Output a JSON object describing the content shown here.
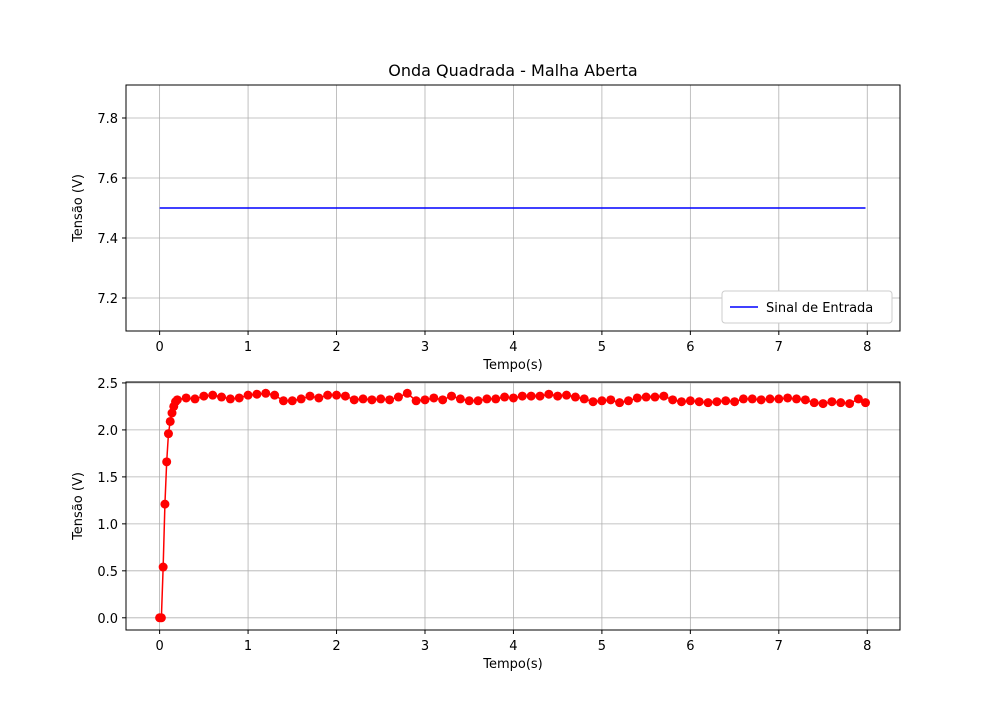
{
  "chart_data": [
    {
      "type": "line",
      "title": "Onda Quadrada - Malha Aberta",
      "xlabel": "Tempo(s)",
      "ylabel": "Tensão (V)",
      "x": [
        0,
        7.98
      ],
      "series": [
        {
          "name": "Sinal de Entrada",
          "color": "#0000ff",
          "values": [
            7.5,
            7.5
          ]
        }
      ],
      "xlim": [
        -0.38,
        8.37
      ],
      "ylim": [
        7.09,
        7.91
      ],
      "xticks": [
        0,
        1,
        2,
        3,
        4,
        5,
        6,
        7,
        8
      ],
      "yticks": [
        7.2,
        7.4,
        7.6,
        7.8
      ],
      "grid": true,
      "legend": "lower right"
    },
    {
      "type": "line",
      "xlabel": "Tempo(s)",
      "ylabel": "Tensão (V)",
      "marker": "o",
      "x": [
        0,
        0.02,
        0.04,
        0.06,
        0.08,
        0.1,
        0.12,
        0.14,
        0.16,
        0.18,
        0.2,
        0.3,
        0.4,
        0.5,
        0.6,
        0.7,
        0.8,
        0.9,
        1.0,
        1.1,
        1.2,
        1.3,
        1.4,
        1.5,
        1.6,
        1.7,
        1.8,
        1.9,
        2.0,
        2.1,
        2.2,
        2.3,
        2.4,
        2.5,
        2.6,
        2.7,
        2.8,
        2.9,
        3.0,
        3.1,
        3.2,
        3.3,
        3.4,
        3.5,
        3.6,
        3.7,
        3.8,
        3.9,
        4.0,
        4.1,
        4.2,
        4.3,
        4.4,
        4.5,
        4.6,
        4.7,
        4.8,
        4.9,
        5.0,
        5.1,
        5.2,
        5.3,
        5.4,
        5.5,
        5.6,
        5.7,
        5.8,
        5.9,
        6.0,
        6.1,
        6.2,
        6.3,
        6.4,
        6.5,
        6.6,
        6.7,
        6.8,
        6.9,
        7.0,
        7.1,
        7.2,
        7.3,
        7.4,
        7.5,
        7.6,
        7.7,
        7.8,
        7.9,
        7.98
      ],
      "series": [
        {
          "color": "#ff0000",
          "values": [
            0,
            0,
            0.54,
            1.21,
            1.66,
            1.96,
            2.09,
            2.18,
            2.25,
            2.3,
            2.32,
            2.34,
            2.33,
            2.36,
            2.37,
            2.35,
            2.33,
            2.34,
            2.37,
            2.38,
            2.39,
            2.37,
            2.31,
            2.31,
            2.33,
            2.36,
            2.34,
            2.37,
            2.37,
            2.36,
            2.32,
            2.33,
            2.32,
            2.33,
            2.32,
            2.35,
            2.39,
            2.31,
            2.32,
            2.34,
            2.32,
            2.36,
            2.33,
            2.31,
            2.31,
            2.33,
            2.33,
            2.35,
            2.34,
            2.36,
            2.36,
            2.36,
            2.38,
            2.36,
            2.37,
            2.35,
            2.33,
            2.3,
            2.31,
            2.32,
            2.29,
            2.31,
            2.34,
            2.35,
            2.35,
            2.36,
            2.32,
            2.3,
            2.31,
            2.3,
            2.29,
            2.3,
            2.31,
            2.3,
            2.33,
            2.33,
            2.32,
            2.33,
            2.33,
            2.34,
            2.33,
            2.32,
            2.29,
            2.28,
            2.3,
            2.29,
            2.28,
            2.33,
            2.29
          ]
        }
      ],
      "xlim": [
        -0.38,
        8.37
      ],
      "ylim": [
        -0.13,
        2.51
      ],
      "xticks": [
        0,
        1,
        2,
        3,
        4,
        5,
        6,
        7,
        8
      ],
      "yticks": [
        {
          "value": 0,
          "label": "0.0"
        },
        {
          "value": 0.5,
          "label": "0.5"
        },
        {
          "value": 1,
          "label": "1.0"
        },
        {
          "value": 1.5,
          "label": "1.5"
        },
        {
          "value": 2,
          "label": "2.0"
        },
        {
          "value": 2.5,
          "label": "2.5"
        }
      ],
      "grid": true
    }
  ]
}
